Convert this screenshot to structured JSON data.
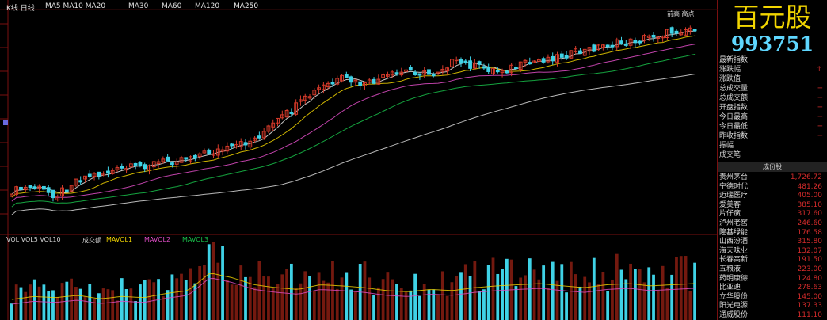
{
  "header": {
    "ma_labels": [
      {
        "text": "K线 日线",
        "color": "#e0e0e0"
      },
      {
        "text": "MA5 MA10 MA20",
        "color": "#e0e0e0"
      },
      {
        "text": "MA30",
        "color": "#e0e0e0"
      },
      {
        "text": "MA60",
        "color": "#e0e0e0"
      },
      {
        "text": "MA120",
        "color": "#e0e0e0"
      },
      {
        "text": "MA250",
        "color": "#f0f0f0"
      }
    ],
    "top_right_tag": "前高 高点"
  },
  "stock": {
    "name": "百元股",
    "code": "993751"
  },
  "info_rows": [
    {
      "label": "最新指数",
      "value": ""
    },
    {
      "label": "涨跌幅",
      "value": "↑"
    },
    {
      "label": "涨跌值",
      "value": ""
    },
    {
      "label": "总成交量",
      "value": "─"
    },
    {
      "label": "总成交额",
      "value": "─"
    },
    {
      "label": "开盘指数",
      "value": "─"
    },
    {
      "label": "今日最高",
      "value": "─"
    },
    {
      "label": "今日最低",
      "value": "─"
    },
    {
      "label": "昨收指数",
      "value": "─"
    },
    {
      "label": "振幅",
      "value": ""
    },
    {
      "label": "成交笔",
      "value": ""
    }
  ],
  "section_title": "成份股",
  "constituents": [
    {
      "name": "贵州茅台",
      "value": "1,726.72"
    },
    {
      "name": "宁德时代",
      "value": "481.26"
    },
    {
      "name": "迈瑞医疗",
      "value": "405.00"
    },
    {
      "name": "爱美客",
      "value": "385.10"
    },
    {
      "name": "片仔癀",
      "value": "317.60"
    },
    {
      "name": "泸州老窖",
      "value": "246.60"
    },
    {
      "name": "隆基绿能",
      "value": "176.58"
    },
    {
      "name": "山西汾酒",
      "value": "315.80"
    },
    {
      "name": "海天味业",
      "value": "132.07"
    },
    {
      "name": "长春高新",
      "value": "191.50"
    },
    {
      "name": "五粮液",
      "value": "223.00"
    },
    {
      "name": "药明康德",
      "value": "124.80"
    },
    {
      "name": "比亚迪",
      "value": "278.63"
    },
    {
      "name": "立华股份",
      "value": "145.00"
    },
    {
      "name": "阳光电源",
      "value": "137.33"
    },
    {
      "name": "通威股份",
      "value": "111.10"
    }
  ],
  "sub_labels": [
    {
      "text": "VOL VOL5 VOL10",
      "color": "#d0d0d0"
    },
    {
      "text": "成交额",
      "color": "#d0d0d0"
    },
    {
      "text": "MAVOL1",
      "color": "#f2d500"
    },
    {
      "text": "MAVOL2",
      "color": "#e04dc7"
    },
    {
      "text": "MAVOL3",
      "color": "#19c04a"
    }
  ],
  "colors": {
    "up": "#d63a2a",
    "down": "#3fd2e6",
    "ma5": "#e8e8e8",
    "ma10": "#f2d500",
    "ma20": "#e04dc7",
    "ma30": "#19c04a",
    "ma60": "#d8d8d8",
    "name": "#f2d500",
    "code": "#5fd7ff"
  },
  "chart_data": {
    "type": "candlestick",
    "series": [
      {
        "name": "close",
        "trend": [
          0.82,
          0.8,
          0.84,
          0.76,
          0.74,
          0.72,
          0.7,
          0.68,
          0.66,
          0.64,
          0.62,
          0.58,
          0.5,
          0.42,
          0.34,
          0.3,
          0.33,
          0.29,
          0.26,
          0.28,
          0.22,
          0.24,
          0.26,
          0.24,
          0.21,
          0.19,
          0.17,
          0.14,
          0.13,
          0.1,
          0.08,
          0.06
        ]
      },
      {
        "name": "volume",
        "trend": [
          0.35,
          0.4,
          0.38,
          0.42,
          0.36,
          0.4,
          0.38,
          0.45,
          0.5,
          0.8,
          0.72,
          0.6,
          0.55,
          0.52,
          0.6,
          0.58,
          0.55,
          0.5,
          0.48,
          0.52,
          0.5,
          0.55,
          0.58,
          0.6,
          0.62,
          0.58,
          0.55,
          0.6,
          0.62,
          0.58,
          0.6,
          0.62
        ]
      }
    ]
  }
}
